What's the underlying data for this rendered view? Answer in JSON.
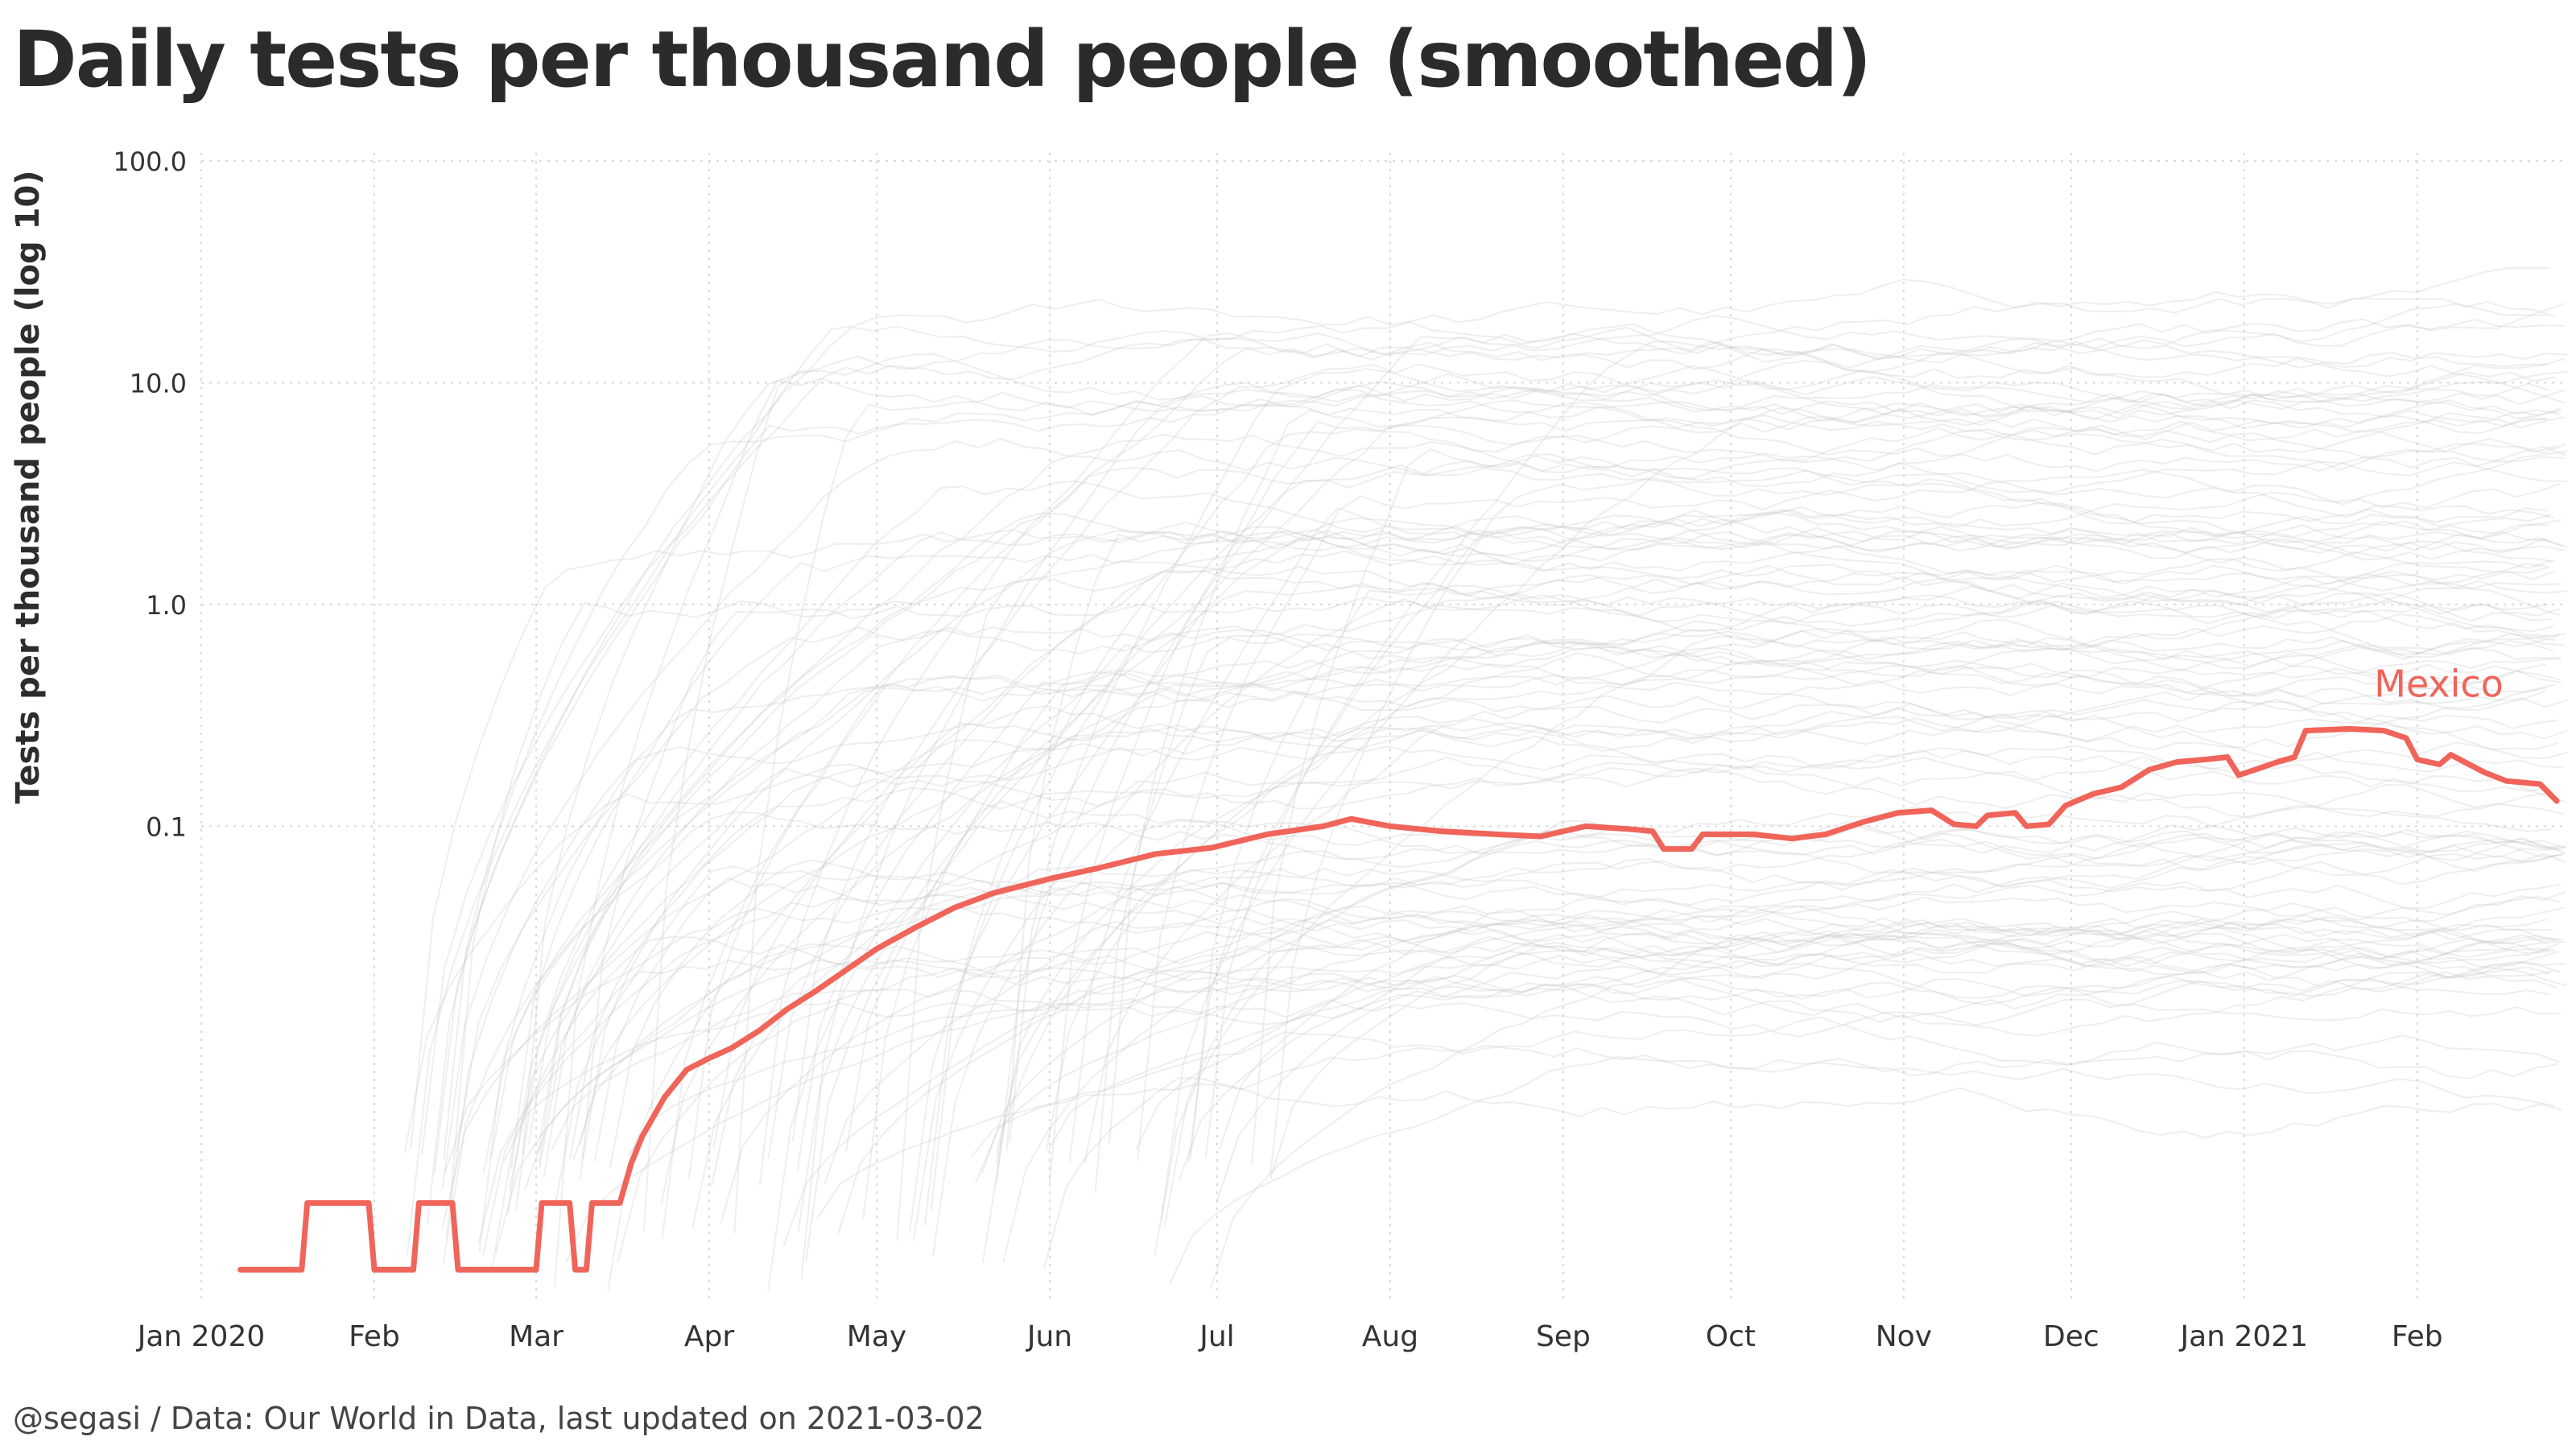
{
  "chart_data": {
    "type": "line",
    "title": "Daily tests per thousand people (smoothed)",
    "ylabel": "Tests per thousand people (log 10)",
    "xlabel": "",
    "y_scale": "log10",
    "ylim": [
      0.0007,
      100
    ],
    "xlim": [
      "2020-01-01",
      "2021-02-28"
    ],
    "grid": true,
    "y_ticks": [
      {
        "value": 100,
        "label": "100.0"
      },
      {
        "value": 10,
        "label": "10.0"
      },
      {
        "value": 1,
        "label": "1.0"
      },
      {
        "value": 0.1,
        "label": "0.1"
      }
    ],
    "x_ticks": [
      {
        "date": "2020-01-01",
        "label": "Jan 2020"
      },
      {
        "date": "2020-02-01",
        "label": "Feb"
      },
      {
        "date": "2020-03-01",
        "label": "Mar"
      },
      {
        "date": "2020-04-01",
        "label": "Apr"
      },
      {
        "date": "2020-05-01",
        "label": "May"
      },
      {
        "date": "2020-06-01",
        "label": "Jun"
      },
      {
        "date": "2020-07-01",
        "label": "Jul"
      },
      {
        "date": "2020-08-01",
        "label": "Aug"
      },
      {
        "date": "2020-09-01",
        "label": "Sep"
      },
      {
        "date": "2020-10-01",
        "label": "Oct"
      },
      {
        "date": "2020-11-01",
        "label": "Nov"
      },
      {
        "date": "2020-12-01",
        "label": "Dec"
      },
      {
        "date": "2021-01-01",
        "label": "Jan 2021"
      },
      {
        "date": "2021-02-01",
        "label": "Feb"
      }
    ],
    "highlight_color": "#f0645a",
    "background_color": "#c8c8c8",
    "series": [
      {
        "name": "Mexico",
        "points": [
          [
            "2020-01-08",
            0.001
          ],
          [
            "2020-01-19",
            0.001
          ],
          [
            "2020-01-20",
            0.002
          ],
          [
            "2020-01-31",
            0.002
          ],
          [
            "2020-02-01",
            0.001
          ],
          [
            "2020-02-08",
            0.001
          ],
          [
            "2020-02-09",
            0.002
          ],
          [
            "2020-02-15",
            0.002
          ],
          [
            "2020-02-16",
            0.001
          ],
          [
            "2020-03-01",
            0.001
          ],
          [
            "2020-03-02",
            0.002
          ],
          [
            "2020-03-07",
            0.002
          ],
          [
            "2020-03-08",
            0.001
          ],
          [
            "2020-03-10",
            0.001
          ],
          [
            "2020-03-11",
            0.002
          ],
          [
            "2020-03-16",
            0.002
          ],
          [
            "2020-03-18",
            0.003
          ],
          [
            "2020-03-20",
            0.004
          ],
          [
            "2020-03-24",
            0.006
          ],
          [
            "2020-03-28",
            0.008
          ],
          [
            "2020-04-01",
            0.009
          ],
          [
            "2020-04-05",
            0.01
          ],
          [
            "2020-04-10",
            0.012
          ],
          [
            "2020-04-15",
            0.015
          ],
          [
            "2020-04-20",
            0.018
          ],
          [
            "2020-04-25",
            0.022
          ],
          [
            "2020-05-01",
            0.028
          ],
          [
            "2020-05-08",
            0.035
          ],
          [
            "2020-05-15",
            0.043
          ],
          [
            "2020-05-22",
            0.05
          ],
          [
            "2020-06-01",
            0.058
          ],
          [
            "2020-06-10",
            0.065
          ],
          [
            "2020-06-20",
            0.075
          ],
          [
            "2020-06-30",
            0.08
          ],
          [
            "2020-07-10",
            0.092
          ],
          [
            "2020-07-20",
            0.1
          ],
          [
            "2020-07-25",
            0.108
          ],
          [
            "2020-08-01",
            0.1
          ],
          [
            "2020-08-10",
            0.095
          ],
          [
            "2020-08-20",
            0.092
          ],
          [
            "2020-08-28",
            0.09
          ],
          [
            "2020-09-05",
            0.1
          ],
          [
            "2020-09-13",
            0.097
          ],
          [
            "2020-09-17",
            0.095
          ],
          [
            "2020-09-19",
            0.079
          ],
          [
            "2020-09-24",
            0.079
          ],
          [
            "2020-09-26",
            0.092
          ],
          [
            "2020-10-05",
            0.092
          ],
          [
            "2020-10-12",
            0.088
          ],
          [
            "2020-10-18",
            0.092
          ],
          [
            "2020-10-25",
            0.105
          ],
          [
            "2020-10-31",
            0.115
          ],
          [
            "2020-11-06",
            0.118
          ],
          [
            "2020-11-10",
            0.102
          ],
          [
            "2020-11-14",
            0.1
          ],
          [
            "2020-11-16",
            0.112
          ],
          [
            "2020-11-21",
            0.115
          ],
          [
            "2020-11-23",
            0.1
          ],
          [
            "2020-11-27",
            0.102
          ],
          [
            "2020-11-30",
            0.124
          ],
          [
            "2020-12-05",
            0.14
          ],
          [
            "2020-12-10",
            0.15
          ],
          [
            "2020-12-15",
            0.18
          ],
          [
            "2020-12-20",
            0.195
          ],
          [
            "2020-12-25",
            0.2
          ],
          [
            "2020-12-29",
            0.205
          ],
          [
            "2020-12-31",
            0.17
          ],
          [
            "2021-01-03",
            0.18
          ],
          [
            "2021-01-07",
            0.195
          ],
          [
            "2021-01-10",
            0.205
          ],
          [
            "2021-01-12",
            0.27
          ],
          [
            "2021-01-20",
            0.275
          ],
          [
            "2021-01-26",
            0.27
          ],
          [
            "2021-01-30",
            0.25
          ],
          [
            "2021-02-01",
            0.2
          ],
          [
            "2021-02-05",
            0.19
          ],
          [
            "2021-02-07",
            0.21
          ],
          [
            "2021-02-13",
            0.175
          ],
          [
            "2021-02-17",
            0.16
          ],
          [
            "2021-02-23",
            0.155
          ],
          [
            "2021-02-26",
            0.13
          ]
        ]
      }
    ]
  },
  "footer": {
    "caption": "@segasi / Data: Our World in Data, last updated on 2021-03-02"
  }
}
